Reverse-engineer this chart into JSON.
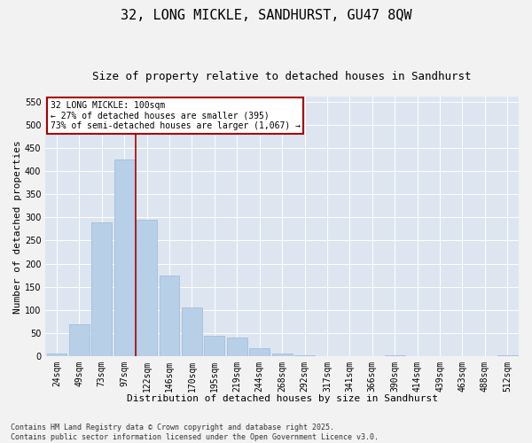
{
  "title_line1": "32, LONG MICKLE, SANDHURST, GU47 8QW",
  "title_line2": "Size of property relative to detached houses in Sandhurst",
  "xlabel": "Distribution of detached houses by size in Sandhurst",
  "ylabel": "Number of detached properties",
  "fig_background_color": "#f2f2f2",
  "plot_background_color": "#dde6f0",
  "bar_color": "#b8cfe8",
  "bar_edge_color": "#9ab8d8",
  "grid_color": "#ffffff",
  "categories": [
    "24sqm",
    "49sqm",
    "73sqm",
    "97sqm",
    "122sqm",
    "146sqm",
    "170sqm",
    "195sqm",
    "219sqm",
    "244sqm",
    "268sqm",
    "292sqm",
    "317sqm",
    "341sqm",
    "366sqm",
    "390sqm",
    "414sqm",
    "439sqm",
    "463sqm",
    "488sqm",
    "512sqm"
  ],
  "values": [
    5,
    70,
    290,
    425,
    295,
    175,
    105,
    45,
    40,
    18,
    5,
    3,
    0,
    0,
    0,
    2,
    0,
    0,
    0,
    0,
    2
  ],
  "ylim": [
    0,
    560
  ],
  "yticks": [
    0,
    50,
    100,
    150,
    200,
    250,
    300,
    350,
    400,
    450,
    500,
    550
  ],
  "annotation_text": "32 LONG MICKLE: 100sqm\n← 27% of detached houses are smaller (395)\n73% of semi-detached houses are larger (1,067) →",
  "vline_index": 3,
  "vline_color": "#aa0000",
  "annotation_box_edgecolor": "#aa0000",
  "footnote_line1": "Contains HM Land Registry data © Crown copyright and database right 2025.",
  "footnote_line2": "Contains public sector information licensed under the Open Government Licence v3.0.",
  "title_fontsize": 11,
  "subtitle_fontsize": 9,
  "xlabel_fontsize": 8,
  "ylabel_fontsize": 8,
  "tick_fontsize": 7,
  "annotation_fontsize": 7,
  "footnote_fontsize": 6
}
